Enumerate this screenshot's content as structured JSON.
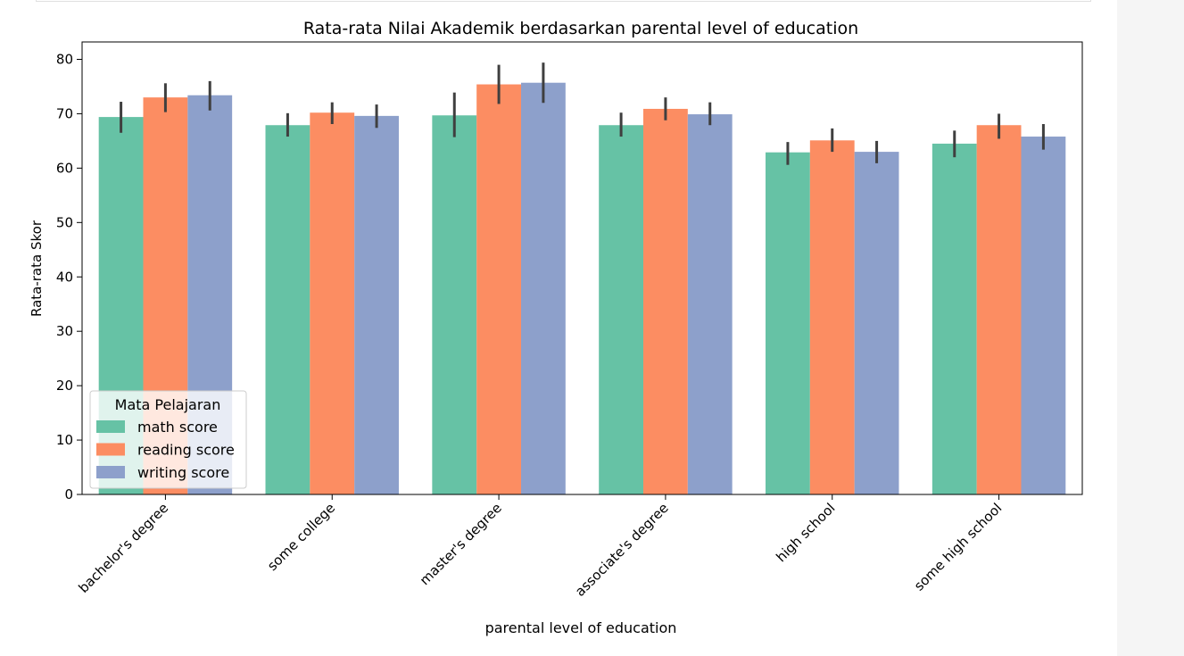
{
  "chart_data": {
    "type": "bar",
    "title": "Rata-rata Nilai Akademik berdasarkan parental level of education",
    "xlabel": "parental level of education",
    "ylabel": "Rata-rata Skor",
    "ylim": [
      0,
      83.2
    ],
    "yticks": [
      0,
      10,
      20,
      30,
      40,
      50,
      60,
      70,
      80
    ],
    "categories": [
      "bachelor's degree",
      "some college",
      "master's degree",
      "associate's degree",
      "high school",
      "some high school"
    ],
    "series": [
      {
        "name": "math score",
        "color": "#66c2a5",
        "values": [
          69.4,
          67.9,
          69.7,
          67.9,
          62.9,
          64.5
        ],
        "err_low": [
          66.5,
          65.8,
          65.7,
          65.8,
          60.6,
          62.0
        ],
        "err_high": [
          72.2,
          70.1,
          73.9,
          70.2,
          64.8,
          66.9
        ]
      },
      {
        "name": "reading score",
        "color": "#fc8d62",
        "values": [
          73.0,
          70.2,
          75.4,
          70.9,
          65.1,
          67.9
        ],
        "err_low": [
          70.3,
          68.1,
          71.8,
          68.8,
          63.0,
          65.4
        ],
        "err_high": [
          75.6,
          72.1,
          79.0,
          73.0,
          67.3,
          70.0
        ]
      },
      {
        "name": "writing score",
        "color": "#8da0cb",
        "values": [
          73.4,
          69.6,
          75.7,
          69.9,
          63.0,
          65.8
        ],
        "err_low": [
          70.6,
          67.4,
          72.0,
          67.9,
          60.9,
          63.4
        ],
        "err_high": [
          76.0,
          71.7,
          79.4,
          72.1,
          65.0,
          68.1
        ]
      }
    ],
    "legend": {
      "title": "Mata Pelajaran",
      "placement": "lower-left"
    },
    "grid": false
  }
}
